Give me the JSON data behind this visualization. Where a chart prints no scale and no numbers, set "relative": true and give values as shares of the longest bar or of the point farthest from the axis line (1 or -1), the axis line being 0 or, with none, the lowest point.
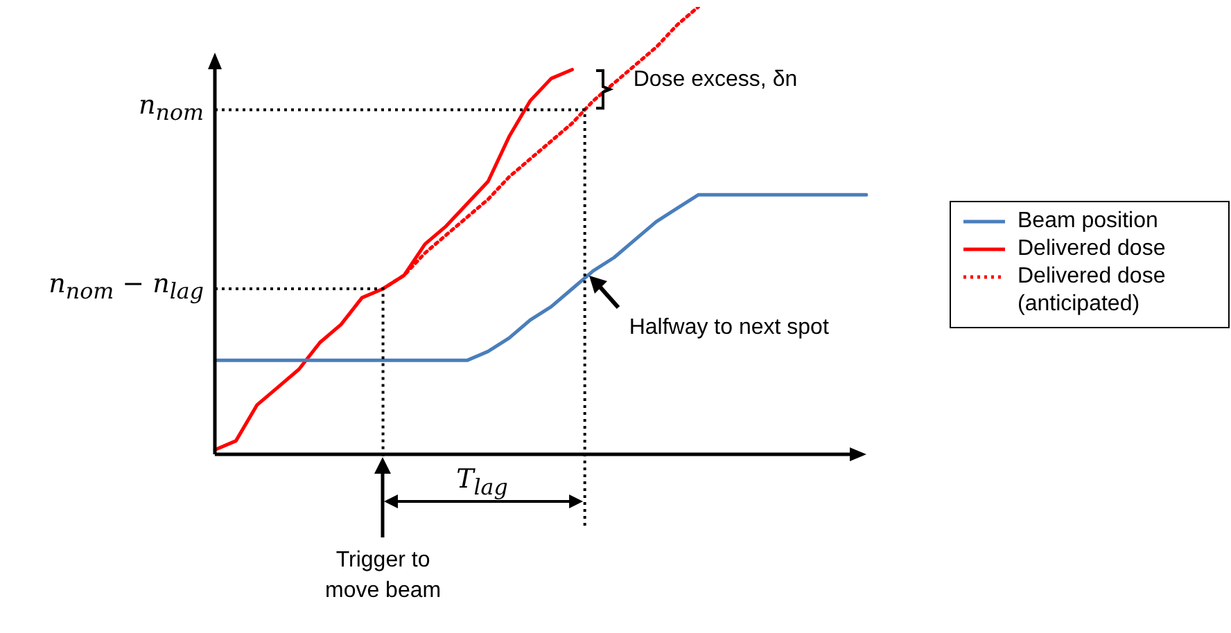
{
  "chart_data": {
    "type": "line",
    "relative": true,
    "legend": "right",
    "categories": [
      null,
      null,
      null,
      null,
      null,
      null,
      null,
      null,
      null,
      null,
      null,
      null,
      null,
      null,
      null,
      null,
      null,
      null,
      null,
      null,
      null,
      null,
      null,
      null,
      null,
      null,
      null,
      null,
      null,
      null,
      null,
      null
    ],
    "series": [
      {
        "name": "Beam position",
        "color": "#4a7ebb",
        "line_style": "solid",
        "values": [
          0.21,
          0.21,
          0.21,
          0.21,
          0.21,
          0.21,
          0.21,
          0.21,
          0.21,
          0.21,
          0.21,
          0.21,
          0.21,
          0.23,
          0.26,
          0.3,
          0.33,
          0.37,
          0.41,
          0.44,
          0.48,
          0.52,
          0.55,
          0.58,
          0.58,
          0.58,
          0.58,
          0.58,
          0.58,
          0.58,
          0.58,
          0.58
        ]
      },
      {
        "name": "Delivered dose",
        "color": "#ff0000",
        "line_style": "solid",
        "values": [
          0.01,
          0.03,
          0.11,
          0.15,
          0.19,
          0.25,
          0.29,
          0.35,
          0.37,
          0.4,
          0.47,
          0.51,
          0.56,
          0.61,
          0.71,
          0.79,
          0.84,
          0.86,
          null,
          null,
          null,
          null,
          null,
          null,
          null,
          null,
          null,
          null,
          null,
          null,
          null,
          null
        ]
      },
      {
        "name": "Delivered dose (anticipated)",
        "color": "#ff0000",
        "line_style": "dotted",
        "values": [
          null,
          null,
          null,
          null,
          null,
          null,
          null,
          null,
          0.37,
          0.4,
          0.45,
          0.49,
          0.53,
          0.57,
          0.62,
          0.66,
          0.7,
          0.74,
          0.79,
          0.83,
          0.87,
          0.91,
          0.96,
          1.0,
          null,
          null,
          null,
          null,
          null,
          null,
          null,
          null
        ]
      }
    ],
    "ref_lines": [
      {
        "axis": "y",
        "value": 0.37,
        "label": "n$_{nom}$ − n$_{lag}$",
        "line_style": "dotted"
      },
      {
        "axis": "y",
        "value": 0.77,
        "label": "n$_{nom}$",
        "line_style": "dotted"
      }
    ],
    "annotations": [
      "Dose excess, δn",
      "Halfway to next spot",
      "T$_{lag}$",
      "Trigger to move beam"
    ]
  }
}
